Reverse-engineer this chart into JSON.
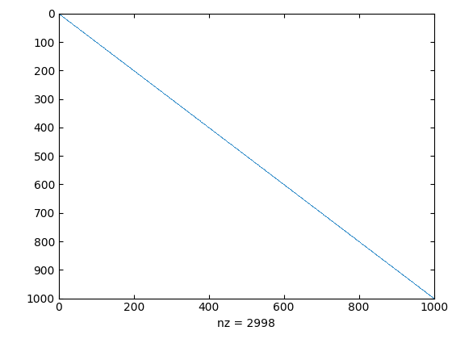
{
  "title": "",
  "xlabel": "nz = 2998",
  "xlim": [
    0,
    1000
  ],
  "ylim": [
    1000,
    0
  ],
  "yticks": [
    0,
    100,
    200,
    300,
    400,
    500,
    600,
    700,
    800,
    900,
    1000
  ],
  "xticks": [
    0,
    200,
    400,
    600,
    800,
    1000
  ],
  "marker_color": "#0072bd",
  "marker": ".",
  "markersize": 1.0,
  "n": 1001,
  "background_color": "#ffffff",
  "tick_fontsize": 10,
  "xlabel_fontsize": 10
}
